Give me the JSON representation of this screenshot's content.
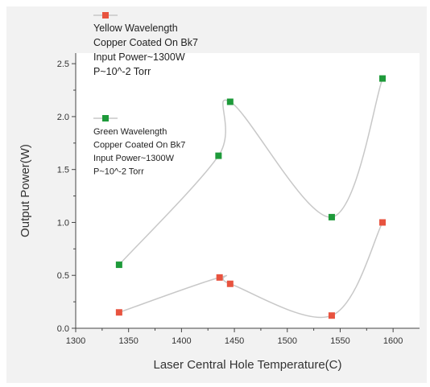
{
  "chart_data": {
    "type": "scatter",
    "title": "",
    "xlabel": "Laser Central Hole Temperature(C)",
    "ylabel": "Output Power(W)",
    "xlim": [
      1300,
      1625
    ],
    "ylim": [
      0,
      2.6
    ],
    "xticks": [
      1300,
      1350,
      1400,
      1450,
      1500,
      1550,
      1600
    ],
    "yticks": [
      0.0,
      0.5,
      1.0,
      1.5,
      2.0,
      2.5
    ],
    "grid": false,
    "legend_position": "top-left",
    "series": [
      {
        "name": "Yellow Wavelength",
        "legend_lines": [
          "Yellow Wavelength",
          "Copper Coated On Bk7",
          "Input Power~1300W",
          "P~10^-2 Torr"
        ],
        "color": "#e8533f",
        "x": [
          1341,
          1436,
          1446,
          1542,
          1590
        ],
        "y": [
          0.15,
          0.48,
          0.42,
          0.12,
          1.0
        ]
      },
      {
        "name": "Green Wavelength",
        "legend_lines": [
          "Green Wavelength",
          "Copper Coated On Bk7",
          "Input Power~1300W",
          "P~10^-2 Torr"
        ],
        "color": "#1e9a3a",
        "x": [
          1341,
          1435,
          1446,
          1542,
          1590
        ],
        "y": [
          0.6,
          1.63,
          2.14,
          1.05,
          2.36
        ]
      }
    ],
    "curve_color": "#c8c8c8"
  }
}
